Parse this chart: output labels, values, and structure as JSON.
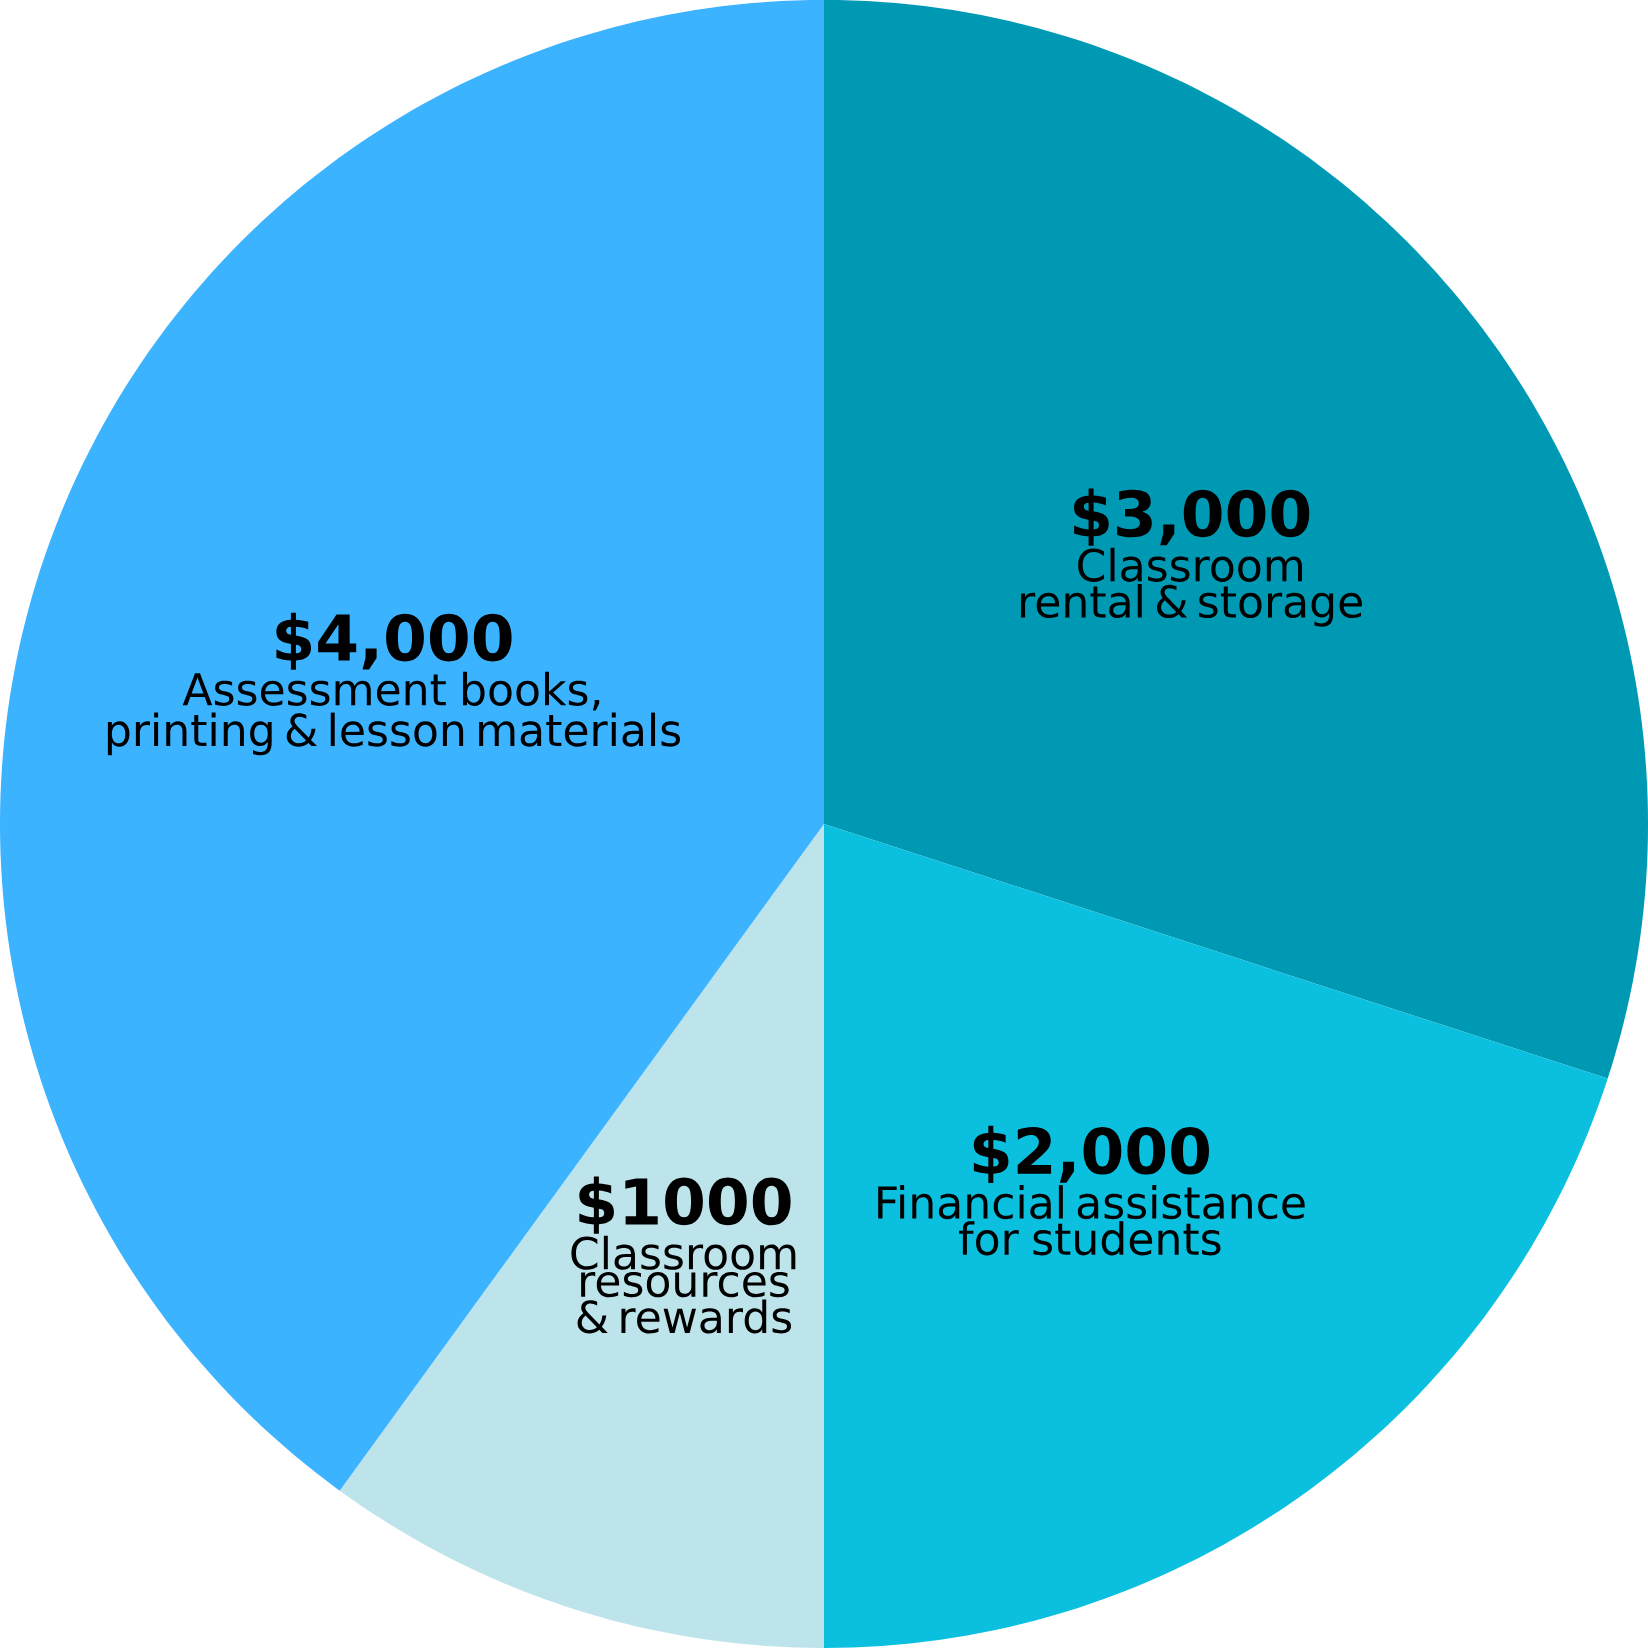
{
  "chart_data": {
    "type": "pie",
    "categories": [
      "Classroom rental & storage",
      "Financial assistance for students",
      "Classroom resources & rewards",
      "Assessment books, printing & lesson materials"
    ],
    "values": [
      3000,
      2000,
      1000,
      4000
    ],
    "value_labels": [
      "$3,000",
      "$2,000",
      "$1000",
      "$4,000"
    ],
    "colors": [
      "#0099b4",
      "#0bbfdf",
      "#bde4ea",
      "#3bb3ff"
    ]
  }
}
